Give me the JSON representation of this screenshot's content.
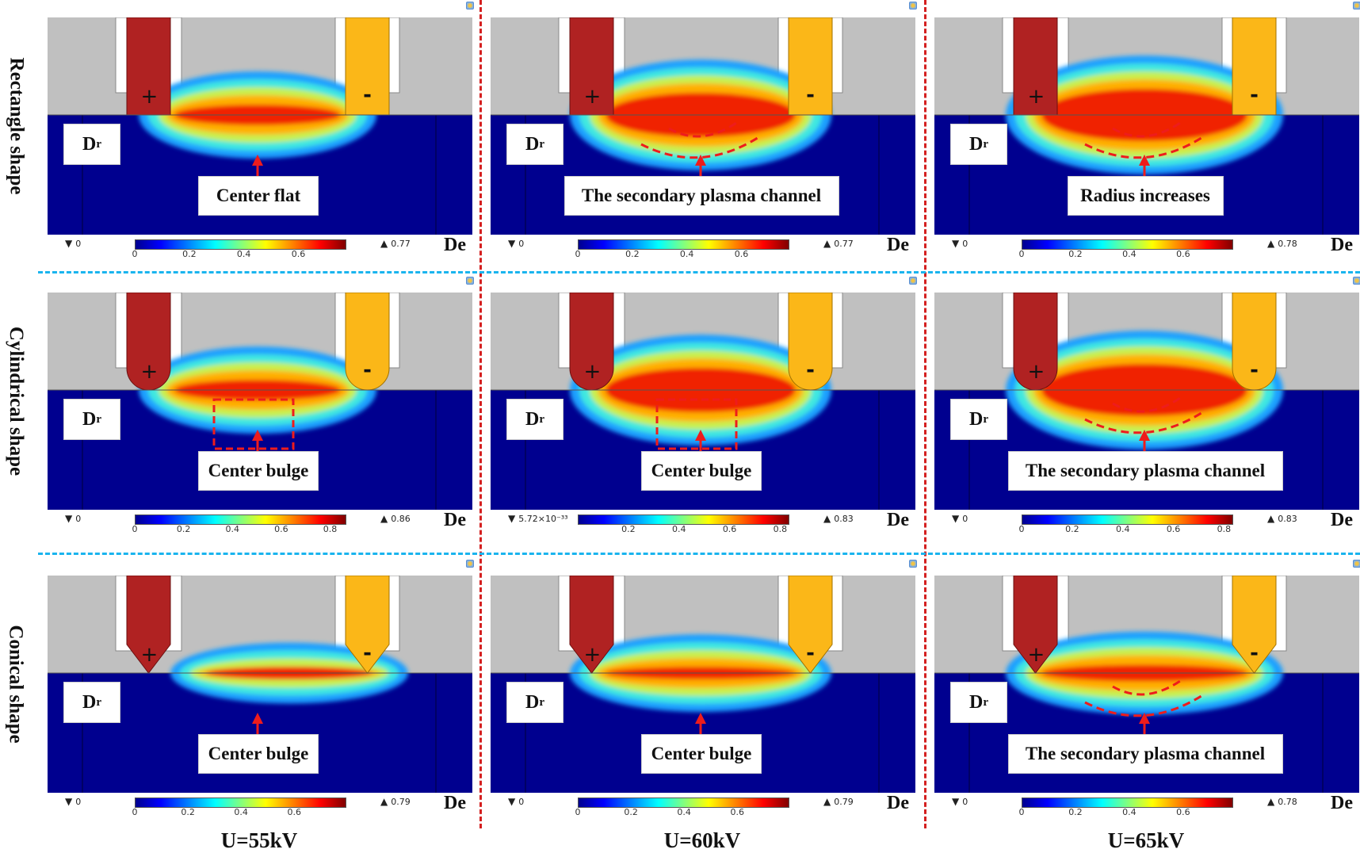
{
  "figure": {
    "row_labels": [
      "Rectangle shape",
      "Cylindrical shape",
      "Conical shape"
    ],
    "column_labels": [
      "U=55kV",
      "U=60kV",
      "U=65kV"
    ],
    "electrode_labels": {
      "positive": "+",
      "negative": "-"
    },
    "region_labels": {
      "dr": "D",
      "dr_sub": "r",
      "de": "De"
    },
    "colors": {
      "dielectric_gray": "#c0c0c0",
      "positive_electrode": "#b02222",
      "negative_electrode": "#fbb718",
      "background_field": "#00008f",
      "column_divider": "#d42020",
      "row_divider": "#1ab4ee",
      "annotation": "#ee1c1c"
    },
    "panels": [
      {
        "row": 0,
        "col": 0,
        "shape": "rectangle",
        "callout": "Center flat",
        "min": "0",
        "max": "0.77",
        "ticks": [
          "0",
          "0.2",
          "0.4",
          "0.6"
        ],
        "tick_max": 0.77,
        "annotation": "arrow"
      },
      {
        "row": 0,
        "col": 1,
        "shape": "rectangle",
        "callout": "The secondary plasma channel",
        "min": "0",
        "max": "0.77",
        "ticks": [
          "0",
          "0.2",
          "0.4",
          "0.6"
        ],
        "tick_max": 0.77,
        "annotation": "dashed-curves"
      },
      {
        "row": 0,
        "col": 2,
        "shape": "rectangle",
        "callout": "Radius increases",
        "min": "0",
        "max": "0.78",
        "ticks": [
          "0",
          "0.2",
          "0.4",
          "0.6"
        ],
        "tick_max": 0.78,
        "annotation": "dashed-curves"
      },
      {
        "row": 1,
        "col": 0,
        "shape": "cylindrical",
        "callout": "Center bulge",
        "min": "0",
        "max": "0.86",
        "ticks": [
          "0",
          "0.2",
          "0.4",
          "0.6",
          "0.8"
        ],
        "tick_max": 0.86,
        "annotation": "dashed-box"
      },
      {
        "row": 1,
        "col": 1,
        "shape": "cylindrical",
        "callout": "Center bulge",
        "min": "5.72×10⁻³³",
        "max": "0.83",
        "ticks": [
          "",
          "0.2",
          "0.4",
          "0.6",
          "0.8"
        ],
        "tick_max": 0.83,
        "annotation": "dashed-box"
      },
      {
        "row": 1,
        "col": 2,
        "shape": "cylindrical",
        "callout": "The secondary plasma channel",
        "min": "0",
        "max": "0.83",
        "ticks": [
          "0",
          "0.2",
          "0.4",
          "0.6",
          "0.8"
        ],
        "tick_max": 0.83,
        "annotation": "dashed-curves"
      },
      {
        "row": 2,
        "col": 0,
        "shape": "conical",
        "callout": "Center bulge",
        "min": "0",
        "max": "0.79",
        "ticks": [
          "0",
          "0.2",
          "0.4",
          "0.6"
        ],
        "tick_max": 0.79,
        "annotation": "arrow"
      },
      {
        "row": 2,
        "col": 1,
        "shape": "conical",
        "callout": "Center bulge",
        "min": "0",
        "max": "0.79",
        "ticks": [
          "0",
          "0.2",
          "0.4",
          "0.6"
        ],
        "tick_max": 0.79,
        "annotation": "arrow"
      },
      {
        "row": 2,
        "col": 2,
        "shape": "conical",
        "callout": "The secondary plasma channel",
        "min": "0",
        "max": "0.78",
        "ticks": [
          "0",
          "0.2",
          "0.4",
          "0.6"
        ],
        "tick_max": 0.78,
        "annotation": "dashed-curves"
      }
    ]
  }
}
